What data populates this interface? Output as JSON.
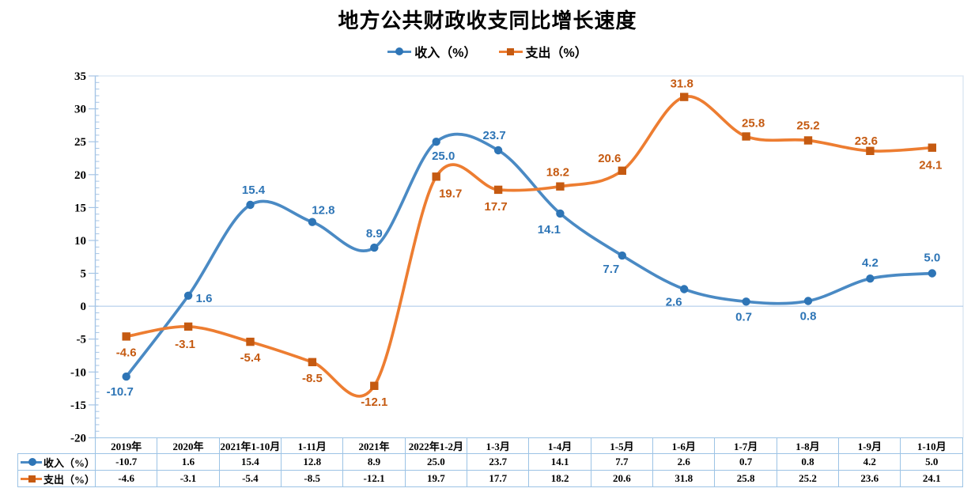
{
  "chart_data": {
    "type": "line",
    "title": "地方公共财政收支同比增长速度",
    "categories": [
      "2019年",
      "2020年",
      "2021年1-10月",
      "1-11月",
      "2021年",
      "2022年1-2月",
      "1-3月",
      "1-4月",
      "1-5月",
      "1-6月",
      "1-7月",
      "1-8月",
      "1-9月",
      "1-10月"
    ],
    "series": [
      {
        "id": "income",
        "name": "收入（%）",
        "values": [
          -10.7,
          1.6,
          15.4,
          12.8,
          8.9,
          25.0,
          23.7,
          14.1,
          7.7,
          2.6,
          0.7,
          0.8,
          4.2,
          5.0
        ],
        "marker": "circle",
        "line_color": "#4A8AC4",
        "marker_color": "#2E75B6",
        "label_color": "#2E75B6",
        "label_offsets": [
          [
            -8,
            24
          ],
          [
            20,
            8
          ],
          [
            4,
            -14
          ],
          [
            14,
            -10
          ],
          [
            0,
            -13
          ],
          [
            9,
            23
          ],
          [
            -5,
            -14
          ],
          [
            -14,
            25
          ],
          [
            -14,
            22
          ],
          [
            -13,
            21
          ],
          [
            -3,
            24
          ],
          [
            0,
            24
          ],
          [
            0,
            -15
          ],
          [
            0,
            -15
          ]
        ]
      },
      {
        "id": "expenditure",
        "name": "支出（%）",
        "values": [
          -4.6,
          -3.1,
          -5.4,
          -8.5,
          -12.1,
          19.7,
          17.7,
          18.2,
          20.6,
          31.8,
          25.8,
          25.2,
          23.6,
          24.1
        ],
        "marker": "square",
        "line_color": "#ED7D31",
        "marker_color": "#C55A11",
        "label_color": "#C55A11",
        "label_offsets": [
          [
            0,
            25
          ],
          [
            -4,
            27
          ],
          [
            0,
            25
          ],
          [
            0,
            25
          ],
          [
            0,
            25
          ],
          [
            18,
            26
          ],
          [
            -3,
            26
          ],
          [
            -3,
            -13
          ],
          [
            -16,
            -11
          ],
          [
            -3,
            -12
          ],
          [
            9,
            -12
          ],
          [
            0,
            -14
          ],
          [
            -5,
            -8
          ],
          [
            -2,
            27
          ]
        ]
      }
    ],
    "y_axis": {
      "min": -20,
      "max": 35,
      "step": 5,
      "tick_labels": [
        "35",
        "30",
        "25",
        "20",
        "15",
        "10",
        "5",
        "0",
        "-5",
        "-10",
        "-15",
        "-20"
      ]
    },
    "legend_position": "top",
    "grid": "zero-line-only",
    "smoothed_lines": true,
    "data_table_shown": true,
    "colors": {
      "axis": "#A6C5E6",
      "plot_border": "#D9E5F2",
      "zero_line": "#A6C5E6",
      "table_border": "#9CC3E5",
      "text": "#000000",
      "background": "#FFFFFF"
    }
  }
}
